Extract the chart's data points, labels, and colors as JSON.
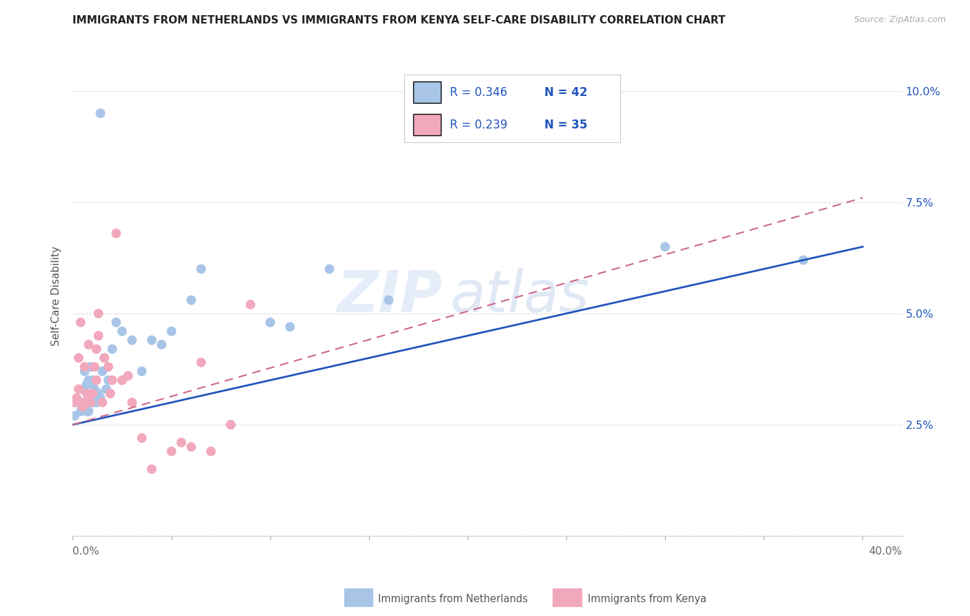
{
  "title": "IMMIGRANTS FROM NETHERLANDS VS IMMIGRANTS FROM KENYA SELF-CARE DISABILITY CORRELATION CHART",
  "source": "Source: ZipAtlas.com",
  "ylabel": "Self-Care Disability",
  "y_ticks": [
    0.0,
    0.025,
    0.05,
    0.075,
    0.1
  ],
  "y_tick_labels": [
    "",
    "2.5%",
    "5.0%",
    "7.5%",
    "10.0%"
  ],
  "x_ticks": [
    0.0,
    0.05,
    0.1,
    0.15,
    0.2,
    0.25,
    0.3,
    0.35,
    0.4
  ],
  "xlim": [
    0.0,
    0.42
  ],
  "ylim": [
    0.0,
    0.108
  ],
  "netherlands_color": "#a8c5e8",
  "kenya_color": "#f2a8bc",
  "trend_nl_color": "#2255bb",
  "trend_ke_color": "#cc6688",
  "netherlands_R": 0.346,
  "netherlands_N": 42,
  "kenya_R": 0.239,
  "kenya_N": 35,
  "watermark_part1": "ZIP",
  "watermark_part2": "atlas",
  "background_color": "#ffffff",
  "grid_color": "#dddddd",
  "nl_x": [
    0.001,
    0.002,
    0.003,
    0.004,
    0.005,
    0.005,
    0.006,
    0.006,
    0.007,
    0.007,
    0.008,
    0.008,
    0.009,
    0.009,
    0.01,
    0.01,
    0.011,
    0.012,
    0.013,
    0.014,
    0.015,
    0.016,
    0.017,
    0.018,
    0.02,
    0.022,
    0.025,
    0.03,
    0.035,
    0.04,
    0.05,
    0.06,
    0.065,
    0.08,
    0.1,
    0.11,
    0.13,
    0.16,
    0.3,
    0.37,
    0.014,
    0.045
  ],
  "nl_y": [
    0.027,
    0.03,
    0.03,
    0.028,
    0.03,
    0.033,
    0.03,
    0.037,
    0.034,
    0.028,
    0.028,
    0.035,
    0.03,
    0.038,
    0.03,
    0.035,
    0.033,
    0.03,
    0.032,
    0.031,
    0.037,
    0.04,
    0.033,
    0.035,
    0.042,
    0.048,
    0.046,
    0.044,
    0.037,
    0.044,
    0.046,
    0.053,
    0.06,
    0.025,
    0.048,
    0.047,
    0.06,
    0.053,
    0.065,
    0.062,
    0.095,
    0.043
  ],
  "ke_x": [
    0.001,
    0.002,
    0.003,
    0.003,
    0.004,
    0.005,
    0.006,
    0.006,
    0.007,
    0.008,
    0.009,
    0.01,
    0.011,
    0.012,
    0.012,
    0.013,
    0.013,
    0.015,
    0.016,
    0.018,
    0.019,
    0.02,
    0.022,
    0.025,
    0.028,
    0.03,
    0.035,
    0.04,
    0.05,
    0.055,
    0.06,
    0.065,
    0.07,
    0.08,
    0.09
  ],
  "ke_y": [
    0.03,
    0.031,
    0.033,
    0.04,
    0.048,
    0.029,
    0.03,
    0.038,
    0.032,
    0.043,
    0.03,
    0.032,
    0.038,
    0.035,
    0.042,
    0.045,
    0.05,
    0.03,
    0.04,
    0.038,
    0.032,
    0.035,
    0.068,
    0.035,
    0.036,
    0.03,
    0.022,
    0.015,
    0.019,
    0.021,
    0.02,
    0.039,
    0.019,
    0.025,
    0.052
  ],
  "nl_line_x0": 0.0,
  "nl_line_x1": 0.4,
  "nl_line_y0": 0.025,
  "nl_line_y1": 0.065,
  "ke_line_x0": 0.0,
  "ke_line_x1": 0.4,
  "ke_line_y0": 0.025,
  "ke_line_y1": 0.076
}
